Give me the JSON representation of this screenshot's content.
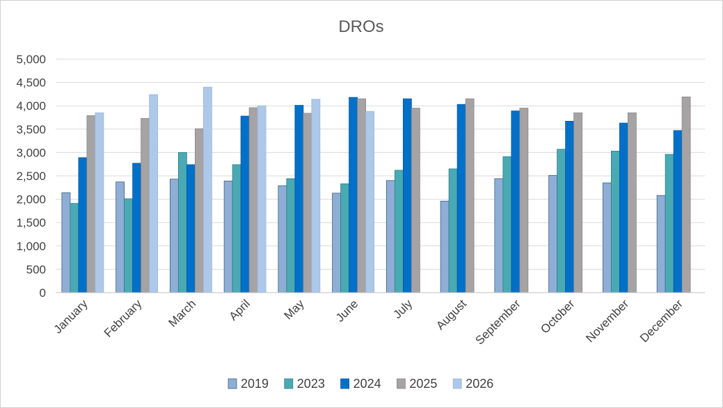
{
  "chart_data": {
    "type": "bar",
    "title": "DROs",
    "xlabel": "",
    "ylabel": "",
    "ylim": [
      0,
      5000
    ],
    "yticks": [
      0,
      500,
      1000,
      1500,
      2000,
      2500,
      3000,
      3500,
      4000,
      4500,
      5000
    ],
    "ytick_labels": [
      "0",
      "500",
      "1,000",
      "1,500",
      "2,000",
      "2,500",
      "3,000",
      "3,500",
      "4,000",
      "4,500",
      "5,000"
    ],
    "grid": true,
    "legend_position": "bottom",
    "categories": [
      "January",
      "February",
      "March",
      "April",
      "May",
      "June",
      "July",
      "August",
      "September",
      "October",
      "November",
      "December"
    ],
    "series": [
      {
        "name": "2019",
        "color": "#8eaed6",
        "stroke": "#3f5f7f",
        "values": [
          2140,
          2370,
          2430,
          2390,
          2290,
          2130,
          2400,
          1960,
          2440,
          2510,
          2350,
          2080
        ]
      },
      {
        "name": "2023",
        "color": "#4aaab4",
        "stroke": "#2f7d86",
        "values": [
          1910,
          2010,
          3000,
          2740,
          2440,
          2330,
          2620,
          2650,
          2910,
          3070,
          3030,
          2960
        ]
      },
      {
        "name": "2024",
        "color": "#0070c9",
        "stroke": "#005a9e",
        "values": [
          2890,
          2770,
          2740,
          3780,
          4010,
          4180,
          4150,
          4030,
          3890,
          3670,
          3630,
          3470
        ]
      },
      {
        "name": "2025",
        "color": "#a6a3a4",
        "stroke": "#8c898a",
        "values": [
          3790,
          3730,
          3510,
          3960,
          3840,
          4150,
          3950,
          4150,
          3950,
          3850,
          3850,
          4190
        ]
      },
      {
        "name": "2026",
        "color": "#adc8e8",
        "stroke": "#9bb8da",
        "values": [
          3850,
          4240,
          4400,
          4000,
          4140,
          3880,
          null,
          null,
          null,
          null,
          null,
          null
        ]
      }
    ]
  }
}
